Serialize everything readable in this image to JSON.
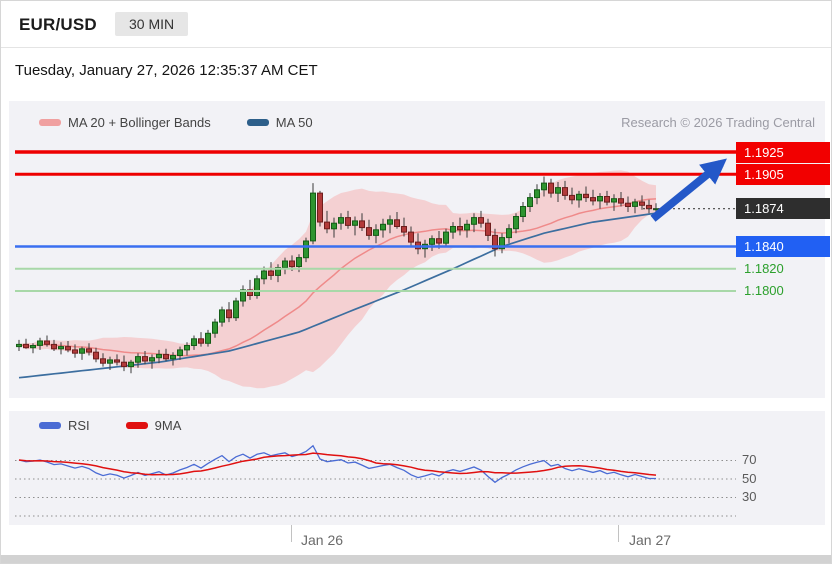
{
  "header": {
    "symbol": "EUR/USD",
    "timeframe": "30 MIN"
  },
  "datetime": "Tuesday, January 27, 2026 12:35:37 AM CET",
  "price_chart": {
    "legend": [
      {
        "label": "MA 20 + Bollinger Bands",
        "color": "#f0a0a0"
      },
      {
        "label": "MA 50",
        "color": "#2d5f8a"
      }
    ],
    "watermark": "Research © 2026 Trading Central"
  },
  "rsi_panel": {
    "legend": [
      {
        "label": "RSI",
        "color": "#4a6bd4"
      },
      {
        "label": "9MA",
        "color": "#e01010"
      }
    ],
    "ticks": [
      "70",
      "50",
      "30"
    ]
  },
  "x_axis": {
    "labels": [
      "Jan 26",
      "Jan 27"
    ]
  },
  "chart_data": [
    {
      "type": "candlestick",
      "title": "EUR/USD 30 MIN with MA 20 + Bollinger Bands and MA 50",
      "ylim": [
        1.17,
        1.197
      ],
      "levels": [
        {
          "label": "1.1925",
          "price": 1.1925,
          "kind": "resistance",
          "color": "#ee0000"
        },
        {
          "label": "1.1905",
          "price": 1.1905,
          "kind": "resistance",
          "color": "#ee0000"
        },
        {
          "label": "1.1874",
          "price": 1.1874,
          "kind": "last-price",
          "color": "#444444"
        },
        {
          "label": "1.1840",
          "price": 1.184,
          "kind": "support-blue",
          "color": "#3a6ff0"
        },
        {
          "label": "1.1820",
          "price": 1.182,
          "kind": "support-green",
          "color": "#a8d8a8"
        },
        {
          "label": "1.1800",
          "price": 1.18,
          "kind": "support-green",
          "color": "#a8d8a8"
        }
      ],
      "annotation_arrow": {
        "direction": "up-right",
        "from_price": 1.1865,
        "to_price": 1.1922,
        "color": "#2458c8"
      },
      "bollinger": {
        "period": 20,
        "stddev": 2
      },
      "ma50_points": [
        [
          0,
          1.1722
        ],
        [
          10,
          1.1729
        ],
        [
          20,
          1.1736
        ],
        [
          30,
          1.1746
        ],
        [
          40,
          1.1763
        ],
        [
          47,
          1.1781
        ],
        [
          55,
          1.1801
        ],
        [
          62,
          1.182
        ],
        [
          69,
          1.184
        ],
        [
          75,
          1.1852
        ],
        [
          82,
          1.1862
        ],
        [
          91,
          1.187
        ]
      ],
      "candles_ohlc": [
        [
          1.175,
          1.1756,
          1.1746,
          1.1752
        ],
        [
          1.1752,
          1.1757,
          1.1748,
          1.1749
        ],
        [
          1.1749,
          1.1753,
          1.1744,
          1.1751
        ],
        [
          1.1751,
          1.1758,
          1.1747,
          1.1755
        ],
        [
          1.1755,
          1.176,
          1.175,
          1.1752
        ],
        [
          1.1752,
          1.1756,
          1.1746,
          1.1748
        ],
        [
          1.1748,
          1.1754,
          1.1743,
          1.175
        ],
        [
          1.175,
          1.1755,
          1.1745,
          1.1747
        ],
        [
          1.1747,
          1.1752,
          1.174,
          1.1744
        ],
        [
          1.1744,
          1.175,
          1.1738,
          1.1748
        ],
        [
          1.1748,
          1.1753,
          1.1742,
          1.1745
        ],
        [
          1.1745,
          1.1749,
          1.1736,
          1.1739
        ],
        [
          1.1739,
          1.1744,
          1.1732,
          1.1735
        ],
        [
          1.1735,
          1.1741,
          1.1729,
          1.1738
        ],
        [
          1.1738,
          1.1743,
          1.1733,
          1.1736
        ],
        [
          1.1736,
          1.1742,
          1.1728,
          1.1732
        ],
        [
          1.1732,
          1.1738,
          1.1726,
          1.1736
        ],
        [
          1.1736,
          1.1744,
          1.1731,
          1.1741
        ],
        [
          1.1741,
          1.1746,
          1.1734,
          1.1737
        ],
        [
          1.1737,
          1.1743,
          1.173,
          1.174
        ],
        [
          1.174,
          1.1747,
          1.1735,
          1.1743
        ],
        [
          1.1743,
          1.1748,
          1.1737,
          1.1739
        ],
        [
          1.1739,
          1.1745,
          1.1733,
          1.1742
        ],
        [
          1.1742,
          1.175,
          1.1738,
          1.1747
        ],
        [
          1.1747,
          1.1754,
          1.1742,
          1.1751
        ],
        [
          1.1751,
          1.176,
          1.1747,
          1.1757
        ],
        [
          1.1757,
          1.1763,
          1.175,
          1.1753
        ],
        [
          1.1753,
          1.1765,
          1.175,
          1.1762
        ],
        [
          1.1762,
          1.1775,
          1.1758,
          1.1772
        ],
        [
          1.1772,
          1.1786,
          1.1768,
          1.1783
        ],
        [
          1.1783,
          1.179,
          1.1772,
          1.1776
        ],
        [
          1.1776,
          1.1794,
          1.1773,
          1.1791
        ],
        [
          1.1791,
          1.1805,
          1.1786,
          1.1801
        ],
        [
          1.1801,
          1.181,
          1.1792,
          1.1796
        ],
        [
          1.1796,
          1.1814,
          1.1793,
          1.1811
        ],
        [
          1.1811,
          1.1822,
          1.1806,
          1.1818
        ],
        [
          1.1818,
          1.1826,
          1.181,
          1.1814
        ],
        [
          1.1814,
          1.1824,
          1.1808,
          1.1821
        ],
        [
          1.1821,
          1.183,
          1.1815,
          1.1827
        ],
        [
          1.1827,
          1.1832,
          1.1818,
          1.1822
        ],
        [
          1.1822,
          1.1833,
          1.1817,
          1.183
        ],
        [
          1.183,
          1.1848,
          1.1826,
          1.1845
        ],
        [
          1.1845,
          1.1897,
          1.1842,
          1.1888
        ],
        [
          1.1888,
          1.189,
          1.1858,
          1.1862
        ],
        [
          1.1862,
          1.1872,
          1.1852,
          1.1856
        ],
        [
          1.1856,
          1.1866,
          1.1848,
          1.1861
        ],
        [
          1.1861,
          1.187,
          1.1855,
          1.1866
        ],
        [
          1.1866,
          1.1872,
          1.1856,
          1.1859
        ],
        [
          1.1859,
          1.1867,
          1.185,
          1.1863
        ],
        [
          1.1863,
          1.187,
          1.1854,
          1.1857
        ],
        [
          1.1857,
          1.1864,
          1.1846,
          1.185
        ],
        [
          1.185,
          1.186,
          1.1843,
          1.1855
        ],
        [
          1.1855,
          1.1865,
          1.1848,
          1.186
        ],
        [
          1.186,
          1.1868,
          1.1852,
          1.1864
        ],
        [
          1.1864,
          1.1871,
          1.1856,
          1.1858
        ],
        [
          1.1858,
          1.1866,
          1.1849,
          1.1853
        ],
        [
          1.1853,
          1.1858,
          1.184,
          1.1844
        ],
        [
          1.1844,
          1.1852,
          1.1833,
          1.1838
        ],
        [
          1.1838,
          1.1846,
          1.183,
          1.1842
        ],
        [
          1.1842,
          1.185,
          1.1836,
          1.1847
        ],
        [
          1.1847,
          1.1854,
          1.1838,
          1.1843
        ],
        [
          1.1843,
          1.1856,
          1.184,
          1.1853
        ],
        [
          1.1853,
          1.1862,
          1.1847,
          1.1858
        ],
        [
          1.1858,
          1.1866,
          1.185,
          1.1855
        ],
        [
          1.1855,
          1.1864,
          1.1848,
          1.186
        ],
        [
          1.186,
          1.187,
          1.1853,
          1.1866
        ],
        [
          1.1866,
          1.1872,
          1.1857,
          1.1861
        ],
        [
          1.1861,
          1.1865,
          1.1845,
          1.185
        ],
        [
          1.185,
          1.1856,
          1.1831,
          1.1838
        ],
        [
          1.1838,
          1.1852,
          1.1834,
          1.1848
        ],
        [
          1.1848,
          1.186,
          1.1843,
          1.1856
        ],
        [
          1.1856,
          1.187,
          1.1852,
          1.1867
        ],
        [
          1.1867,
          1.188,
          1.1862,
          1.1876
        ],
        [
          1.1876,
          1.1888,
          1.1871,
          1.1884
        ],
        [
          1.1884,
          1.1896,
          1.1878,
          1.1891
        ],
        [
          1.1891,
          1.1903,
          1.1885,
          1.1897
        ],
        [
          1.1897,
          1.1901,
          1.1884,
          1.1888
        ],
        [
          1.1888,
          1.1898,
          1.188,
          1.1893
        ],
        [
          1.1893,
          1.1899,
          1.1882,
          1.1886
        ],
        [
          1.1886,
          1.1893,
          1.1878,
          1.1882
        ],
        [
          1.1882,
          1.189,
          1.1875,
          1.1887
        ],
        [
          1.1887,
          1.1894,
          1.188,
          1.1884
        ],
        [
          1.1884,
          1.1891,
          1.1877,
          1.1881
        ],
        [
          1.1881,
          1.1888,
          1.1874,
          1.1885
        ],
        [
          1.1885,
          1.189,
          1.1877,
          1.188
        ],
        [
          1.188,
          1.1887,
          1.1872,
          1.1883
        ],
        [
          1.1883,
          1.1889,
          1.1876,
          1.1879
        ],
        [
          1.1879,
          1.1885,
          1.1871,
          1.1876
        ],
        [
          1.1876,
          1.1883,
          1.187,
          1.188
        ],
        [
          1.188,
          1.1886,
          1.1873,
          1.1877
        ],
        [
          1.1877,
          1.1882,
          1.187,
          1.1874
        ],
        [
          1.1874,
          1.1879,
          1.1869,
          1.1874
        ]
      ]
    },
    {
      "type": "line",
      "title": "RSI",
      "series": [
        {
          "name": "RSI",
          "period": 14,
          "source": "close"
        },
        {
          "name": "9MA",
          "period": 9,
          "source": "RSI"
        }
      ],
      "ylim": [
        0,
        100
      ],
      "yticks": [
        70,
        50,
        30
      ]
    }
  ]
}
